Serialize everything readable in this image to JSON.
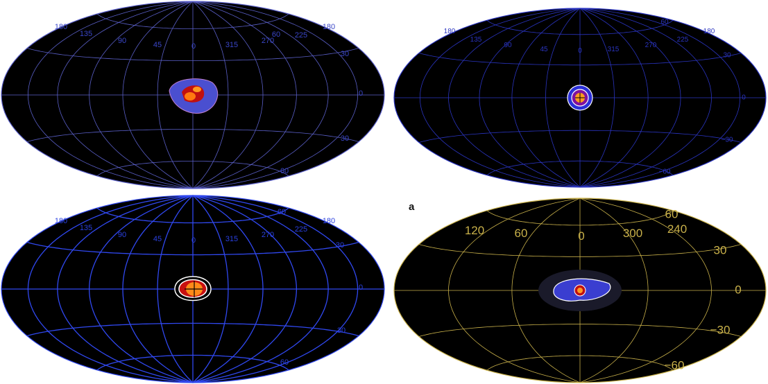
{
  "figure_label": "a",
  "panels": [
    {
      "id": "tl",
      "grid_color": "#5a5fc8",
      "label_color": "#3a46c8",
      "lon_labels": [
        "180",
        "135",
        "90",
        "45",
        "0",
        "315",
        "270",
        "225",
        "180"
      ],
      "lat_labels": [
        "60",
        "30",
        "0",
        "30",
        "60"
      ],
      "blob": "diffuse-violet"
    },
    {
      "id": "tr",
      "grid_color": "#2a34c0",
      "label_color": "#2a34c0",
      "lon_labels": [
        "180",
        "135",
        "90",
        "45",
        "0",
        "315",
        "270",
        "225",
        "180"
      ],
      "lat_labels": [
        "60",
        "30",
        "0",
        "−30",
        "−60"
      ],
      "blob": "compact"
    },
    {
      "id": "bl",
      "grid_color": "#3048f0",
      "label_color": "#2a40e0",
      "lon_labels": [
        "180",
        "135",
        "90",
        "45",
        "0",
        "315",
        "270",
        "225",
        "180"
      ],
      "lat_labels": [
        "60",
        "30",
        "0",
        "30",
        "60"
      ],
      "blob": "compact-bright"
    },
    {
      "id": "br",
      "grid_color": "#c9b14a",
      "label_color": "#c9b14a",
      "lon_labels": [
        "120",
        "60",
        "0",
        "300",
        "240"
      ],
      "lat_labels": [
        "60",
        "30",
        "0",
        "−30",
        "−60"
      ],
      "blob": "diffuse-wide"
    }
  ]
}
